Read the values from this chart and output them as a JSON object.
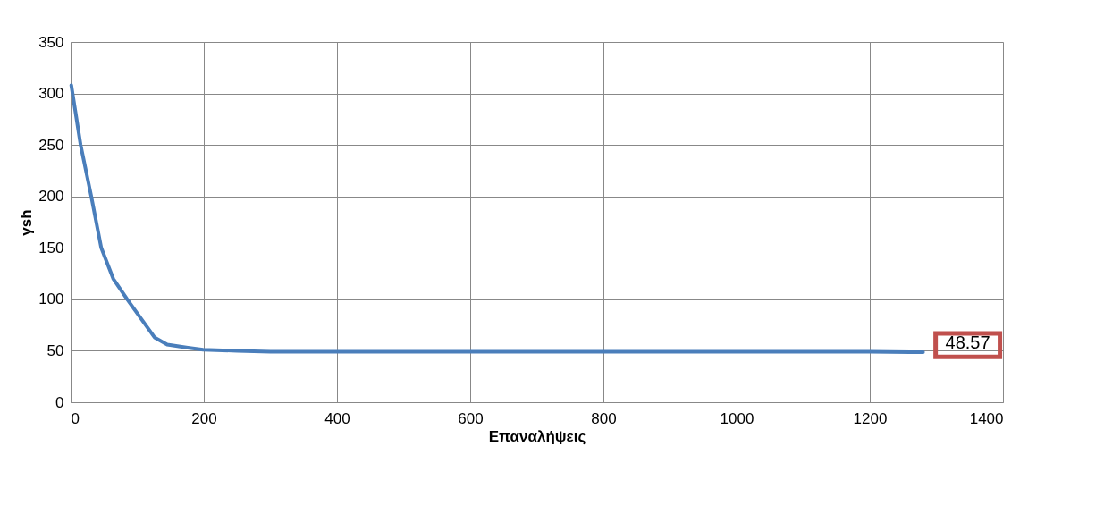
{
  "chart_data": {
    "type": "line",
    "xlabel": "Επαναλήψεις",
    "ylabel": "γsh",
    "x": [
      1,
      15,
      31,
      46,
      64,
      85,
      105,
      126,
      145,
      176,
      199,
      250,
      300,
      400,
      500,
      600,
      800,
      1000,
      1200,
      1280
    ],
    "series": [
      {
        "color": "#4a7ebb",
        "values": [
          308,
          250,
          200,
          150,
          120,
          100,
          82,
          63,
          56,
          53,
          51,
          50,
          49,
          49,
          49,
          49,
          49,
          49,
          49,
          48.57
        ]
      }
    ],
    "annotations": [
      {
        "text": "48.57",
        "x": 1280,
        "y": 48.57
      }
    ],
    "xlim": [
      0,
      1400
    ],
    "xticks": [
      0,
      200,
      400,
      600,
      800,
      1000,
      1200,
      1400
    ],
    "ylim": [
      0,
      350
    ],
    "yticks": [
      0,
      50,
      100,
      150,
      200,
      250,
      300,
      350
    ],
    "grid": true,
    "legend": false,
    "marker": "none",
    "line_style": "solid"
  }
}
